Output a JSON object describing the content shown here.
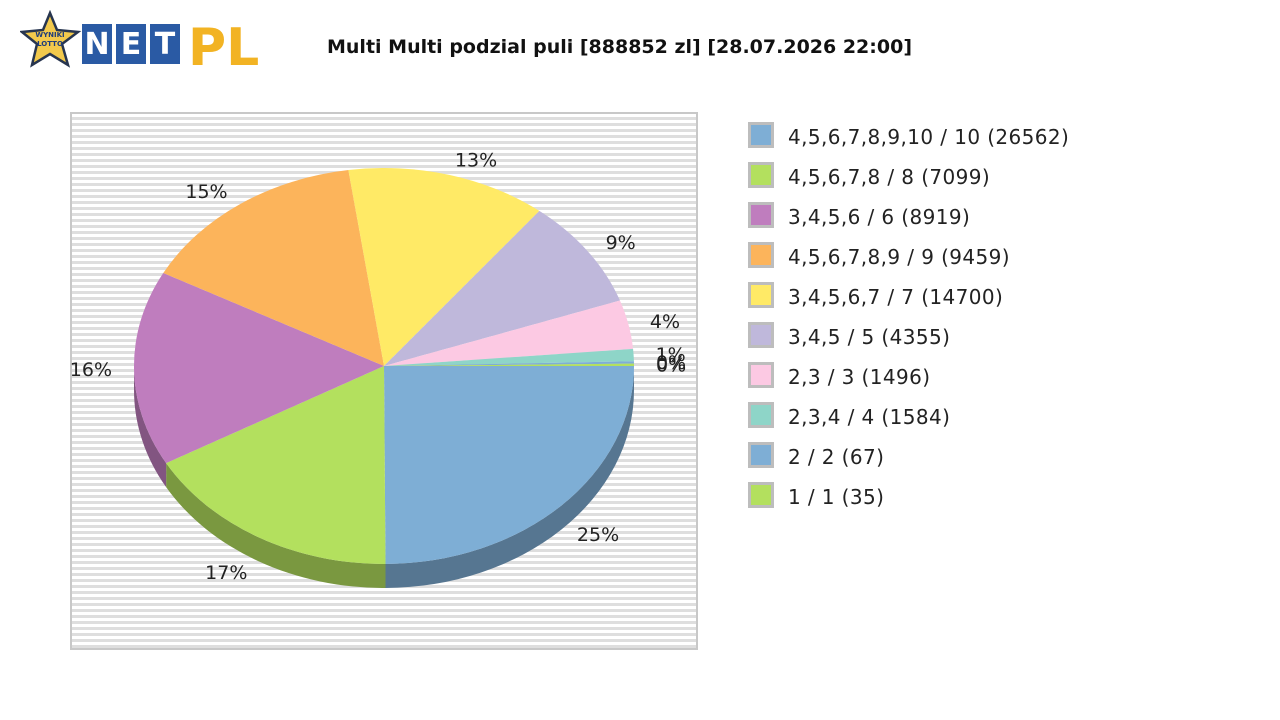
{
  "logo": {
    "text": "NET PL",
    "badge_text": "wyniki lotto"
  },
  "colors": {
    "series": [
      "#7eaed5",
      "#b3e05e",
      "#bf7dbe",
      "#fcb45b",
      "#ffea66",
      "#bfb8db",
      "#fcc9e3",
      "#8ed5c8",
      "#7eaed5",
      "#b3e05e"
    ],
    "frame_border": "#c8c8c8",
    "logo_blue": "#2a5aa4",
    "logo_gold": "#f2b323"
  },
  "chart_data": {
    "type": "pie",
    "title": "Multi Multi podzial puli [888852 zl] [28.07.2026 22:00]",
    "categories": [
      "4,5,6,7,8,9,10 / 10 (26562)",
      "4,5,6,7,8 / 8 (7099)",
      "3,4,5,6 / 6 (8919)",
      "4,5,6,7,8,9 / 9 (9459)",
      "3,4,5,6,7 / 7 (14700)",
      "3,4,5 / 5 (4355)",
      "2,3 / 3 (1496)",
      "2,3,4 / 4 (1584)",
      "2 / 2 (67)",
      "1 / 1 (35)"
    ],
    "values": [
      25,
      17,
      16,
      15,
      13,
      9,
      4,
      1,
      0,
      0
    ],
    "value_labels": [
      "25%",
      "17%",
      "16%",
      "15%",
      "13%",
      "9%",
      "4%",
      "1%",
      "0%",
      "0%"
    ],
    "legend_position": "right",
    "grid": false
  }
}
